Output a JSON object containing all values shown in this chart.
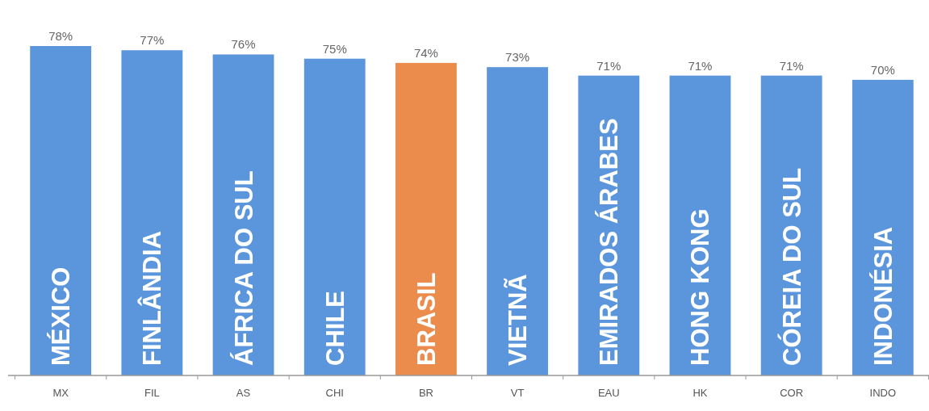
{
  "chart_data": {
    "type": "bar",
    "categories": [
      "MX",
      "FIL",
      "AS",
      "CHI",
      "BR",
      "VT",
      "EAU",
      "HK",
      "COR",
      "INDO"
    ],
    "values": [
      78,
      77,
      76,
      75,
      74,
      73,
      71,
      71,
      71,
      70
    ],
    "value_labels": [
      "78%",
      "77%",
      "76%",
      "75%",
      "74%",
      "73%",
      "71%",
      "71%",
      "71%",
      "70%"
    ],
    "colors": [
      "#5b96dc",
      "#5b96dc",
      "#5b96dc",
      "#5b96dc",
      "#eb8c4c",
      "#5b96dc",
      "#5b96dc",
      "#5b96dc",
      "#5b96dc",
      "#5b96dc"
    ],
    "tick_labels": "x",
    "annotations": [
      "MÉXICO",
      "FINLÂNDIA",
      "ÁFRICA DO SUL",
      "CHILE",
      "BRASIL",
      "VIETNÃ",
      "EMIRADOS ÁRABES",
      "HONG KONG",
      "CÓREIA DO SUL",
      "INDONÉSIA"
    ]
  }
}
